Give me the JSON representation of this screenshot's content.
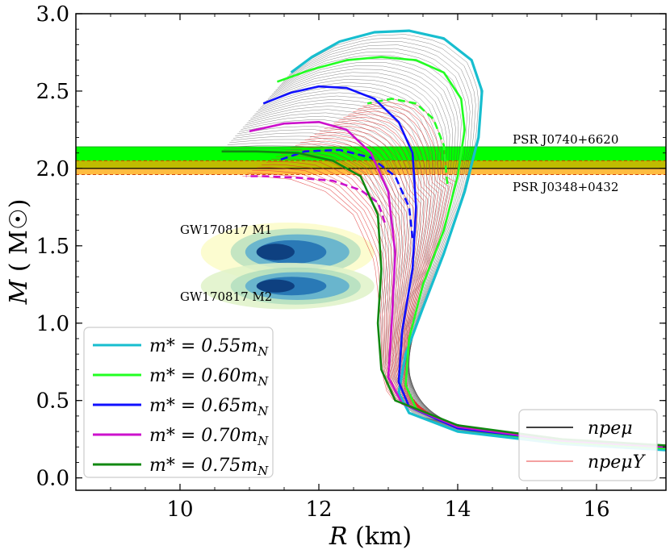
{
  "chart_data": {
    "type": "line",
    "title": "",
    "xlabel_var": "R",
    "xlabel_unit": "(km)",
    "ylabel_var": "M",
    "ylabel_unit": "( M☉)",
    "xlim": [
      8.5,
      17
    ],
    "ylim": [
      -0.08,
      3.0
    ],
    "xticks": [
      10,
      12,
      14,
      16
    ],
    "yticks": [
      0.0,
      0.5,
      1.0,
      1.5,
      2.0,
      2.5,
      3.0
    ],
    "xtick_labels": [
      "10",
      "12",
      "14",
      "16"
    ],
    "ytick_labels": [
      "0.0",
      "0.5",
      "1.0",
      "1.5",
      "2.0",
      "2.5",
      "3.0"
    ],
    "bands": [
      {
        "name": "PSR J0740+6620",
        "range": [
          2.0,
          2.14
        ],
        "color": "#00ff00"
      },
      {
        "name": "PSR J0348+0432",
        "range": [
          1.96,
          2.05
        ],
        "color": "#ffa500"
      }
    ],
    "annotations": {
      "psr1": "PSR J0740+6620",
      "psr2": "PSR J0348+0432",
      "gw1": "GW170817 M1",
      "gw2": "GW170817 M2"
    },
    "series": [
      {
        "name": "m* = 0.55 m_N",
        "label_main": "m* = 0.55m",
        "label_sub": "N",
        "color": "#17becf",
        "x": [
          17.0,
          15.5,
          14.0,
          13.3,
          13.15,
          13.25,
          13.5,
          13.8,
          14.1,
          14.3,
          14.35,
          14.2,
          13.8,
          13.3,
          12.8,
          12.3,
          11.9,
          11.6
        ],
        "y": [
          0.18,
          0.22,
          0.3,
          0.42,
          0.55,
          0.8,
          1.1,
          1.45,
          1.85,
          2.2,
          2.5,
          2.7,
          2.84,
          2.89,
          2.88,
          2.82,
          2.72,
          2.62
        ],
        "hyp_x": [],
        "hyp_y": []
      },
      {
        "name": "m* = 0.60 m_N",
        "label_main": "m* = 0.60m",
        "label_sub": "N",
        "color": "#22ff22",
        "x": [
          17.0,
          15.5,
          14.0,
          13.4,
          13.25,
          13.3,
          13.5,
          13.8,
          14.0,
          14.1,
          14.05,
          13.8,
          13.4,
          12.9,
          12.4,
          11.9,
          11.4
        ],
        "y": [
          0.19,
          0.23,
          0.32,
          0.45,
          0.6,
          0.9,
          1.25,
          1.6,
          1.95,
          2.25,
          2.45,
          2.62,
          2.7,
          2.72,
          2.7,
          2.64,
          2.56
        ],
        "hyp_x": [
          13.85,
          13.8,
          13.65,
          13.4,
          13.05,
          12.7
        ],
        "hyp_y": [
          1.9,
          2.15,
          2.32,
          2.42,
          2.45,
          2.42
        ]
      },
      {
        "name": "m* = 0.65 m_N",
        "label_main": "m* = 0.65m",
        "label_sub": "N",
        "color": "#1010ff",
        "x": [
          17.0,
          15.5,
          14.0,
          13.3,
          13.15,
          13.2,
          13.35,
          13.4,
          13.35,
          13.15,
          12.8,
          12.4,
          12.0,
          11.6,
          11.2
        ],
        "y": [
          0.2,
          0.24,
          0.32,
          0.46,
          0.62,
          0.95,
          1.35,
          1.75,
          2.1,
          2.3,
          2.45,
          2.52,
          2.53,
          2.49,
          2.42
        ],
        "hyp_x": [
          13.35,
          13.3,
          13.1,
          12.75,
          12.3,
          11.8,
          11.4
        ],
        "hyp_y": [
          1.55,
          1.75,
          1.95,
          2.07,
          2.12,
          2.11,
          2.05
        ]
      },
      {
        "name": "m* = 0.70 m_N",
        "label_main": "m* = 0.70m",
        "label_sub": "N",
        "color": "#cc11cc",
        "x": [
          17.0,
          15.5,
          14.0,
          13.2,
          13.0,
          13.05,
          13.1,
          13.0,
          12.75,
          12.4,
          12.0,
          11.5,
          11.0
        ],
        "y": [
          0.2,
          0.24,
          0.33,
          0.48,
          0.65,
          1.0,
          1.45,
          1.85,
          2.1,
          2.25,
          2.3,
          2.29,
          2.24
        ],
        "hyp_x": [
          12.95,
          12.85,
          12.6,
          12.2,
          11.7,
          11.2,
          10.95
        ],
        "hyp_y": [
          1.65,
          1.78,
          1.86,
          1.92,
          1.94,
          1.95,
          1.95
        ]
      },
      {
        "name": "m* = 0.75 m_N",
        "label_main": "m* = 0.75m",
        "label_sub": "N",
        "color": "#118811",
        "x": [
          17.0,
          15.5,
          14.0,
          13.1,
          12.9,
          12.85,
          12.9,
          12.85,
          12.6,
          12.2,
          11.7,
          11.1,
          10.6
        ],
        "y": [
          0.21,
          0.25,
          0.34,
          0.5,
          0.7,
          1.0,
          1.35,
          1.7,
          1.95,
          2.05,
          2.1,
          2.11,
          2.11
        ],
        "hyp_x": [],
        "hyp_y": []
      }
    ],
    "legend_npe": {
      "label1": "npeμ",
      "label2": "npeμY",
      "color1": "#000000",
      "color2": "#f08080"
    }
  }
}
